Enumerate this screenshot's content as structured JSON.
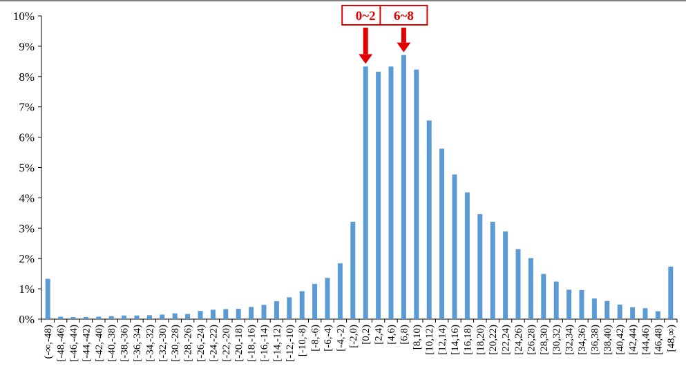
{
  "chart_data": {
    "type": "bar",
    "title": "",
    "xlabel": "",
    "ylabel": "",
    "ylim": [
      0,
      10
    ],
    "y_unit": "%",
    "y_ticks": [
      "0%",
      "1%",
      "2%",
      "3%",
      "4%",
      "5%",
      "6%",
      "7%",
      "8%",
      "9%",
      "10%"
    ],
    "grid": false,
    "legend": "none",
    "bar_color": "#5b9bd5",
    "categories": [
      "(-∞,-48)",
      "[-48,-46)",
      "[-46,-44)",
      "[-44,-42)",
      "[-42,-40)",
      "[-40,-38)",
      "[-38,-36)",
      "[-36,-34)",
      "[-34,-32)",
      "[-32,-30)",
      "[-30,-28)",
      "[-28,-26)",
      "[-26,-24)",
      "[-24,-22)",
      "[-22,-20)",
      "[-20,-18)",
      "[-18,-16)",
      "[-16,-14)",
      "[-14,-12)",
      "[-12,-10)",
      "[-10,-8)",
      "[-8,-6)",
      "[-6,-4)",
      "[-4,-2)",
      "[-2,0)",
      "[0,2)",
      "[2,4)",
      "[4,6)",
      "[6,8)",
      "[8,10)",
      "[10,12)",
      "[12,14)",
      "[14,16)",
      "[16,18)",
      "[18,20)",
      "[20,22)",
      "[22,24)",
      "[24,26)",
      "[26,28)",
      "[28,30)",
      "[30,32)",
      "[32,34)",
      "[34,36)",
      "[36,38)",
      "[38,40)",
      "[40,42)",
      "[42,44)",
      "[44,46)",
      "[46,48)",
      "[48,∞)"
    ],
    "values": [
      1.33,
      0.08,
      0.07,
      0.07,
      0.08,
      0.1,
      0.12,
      0.12,
      0.13,
      0.15,
      0.19,
      0.17,
      0.27,
      0.31,
      0.33,
      0.34,
      0.4,
      0.47,
      0.59,
      0.72,
      0.92,
      1.16,
      1.36,
      1.84,
      3.21,
      8.33,
      8.16,
      8.33,
      8.71,
      8.23,
      6.55,
      5.62,
      4.77,
      4.18,
      3.46,
      3.21,
      2.89,
      2.31,
      2.01,
      1.49,
      1.24,
      0.97,
      0.96,
      0.68,
      0.6,
      0.48,
      0.39,
      0.36,
      0.26,
      1.73
    ],
    "annotations": [
      {
        "text": "0~2",
        "category": "[0,2)",
        "color": "#e00000"
      },
      {
        "text": "6~8",
        "category": "[6,8)",
        "color": "#e00000"
      }
    ]
  }
}
